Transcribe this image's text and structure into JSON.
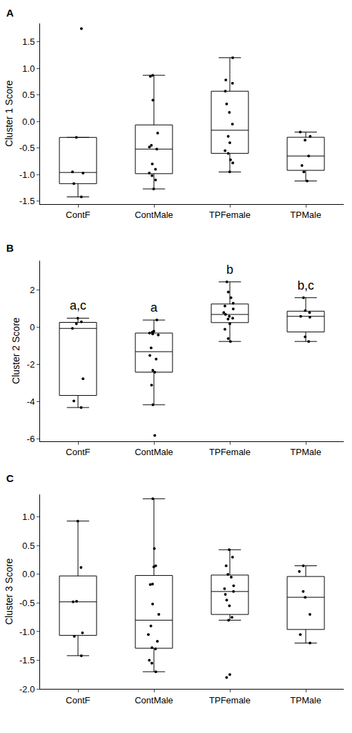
{
  "chart_data": [
    {
      "type": "box",
      "panel": "A",
      "y_label": "Cluster 1 Score",
      "categories": [
        "ContF",
        "ContMale",
        "TPFemale",
        "TPMale"
      ],
      "values": [
        [
          1.75,
          -0.3,
          -0.95,
          -0.97,
          -1.17,
          -1.42
        ],
        [
          0.87,
          0.85,
          0.4,
          -0.22,
          -0.45,
          -0.48,
          -0.52,
          -0.8,
          -0.9,
          -0.97,
          -1.02,
          -1.1,
          -1.27
        ],
        [
          1.2,
          0.78,
          0.72,
          0.57,
          0.33,
          0.17,
          -0.05,
          -0.28,
          -0.4,
          -0.55,
          -0.6,
          -0.72,
          -0.78,
          -0.95
        ],
        [
          -0.2,
          -0.28,
          -0.35,
          -0.65,
          -0.83,
          -0.95,
          -1.12
        ]
      ],
      "ylim": [
        -1.55,
        1.85
      ],
      "yticks": [
        -1.5,
        {
          "value": -1,
          "label": "-1.0"
        },
        -0.5,
        {
          "value": 0,
          "label": "0.0"
        },
        0.5,
        {
          "value": 1,
          "label": "1.0"
        },
        1.5
      ],
      "color": "#000000"
    },
    {
      "type": "box",
      "panel": "B",
      "y_label": "Cluster 2 Score",
      "categories": [
        "ContF",
        "ContMale",
        "TPFemale",
        "TPMale"
      ],
      "values": [
        [
          0.5,
          0.3,
          0.2,
          -0.05,
          -2.75,
          -3.95,
          -4.3
        ],
        [
          0.4,
          -0.2,
          -0.25,
          -0.3,
          -0.35,
          -0.4,
          -1.1,
          -1.5,
          -1.7,
          -2.3,
          -2.4,
          -3.1,
          -4.15,
          -5.8
        ],
        [
          2.45,
          1.9,
          1.6,
          1.3,
          1.15,
          1.0,
          0.8,
          0.7,
          0.6,
          0.5,
          0.45,
          0.2,
          -0.1,
          -0.6,
          -0.75
        ],
        [
          1.6,
          0.9,
          0.8,
          0.6,
          0.55,
          -0.5,
          -0.75
        ]
      ],
      "ylim": [
        -6.1,
        3.6
      ],
      "yticks": [
        -6,
        -4,
        -2,
        0,
        2
      ],
      "annotations": [
        {
          "category": "ContF",
          "text": "a,c"
        },
        {
          "category": "ContMale",
          "text": "a"
        },
        {
          "category": "TPFemale",
          "text": "b"
        },
        {
          "category": "TPMale",
          "text": "b,c"
        }
      ],
      "color": "#000000"
    },
    {
      "type": "box",
      "panel": "C",
      "y_label": "Cluster 3 Score",
      "categories": [
        "ContF",
        "ContMale",
        "TPFemale",
        "TPMale"
      ],
      "values": [
        [
          0.93,
          0.12,
          -0.47,
          -0.48,
          -1.02,
          -1.08,
          -1.42
        ],
        [
          1.32,
          0.45,
          0.15,
          0.13,
          -0.17,
          -0.18,
          -0.52,
          -0.7,
          -0.9,
          -1.05,
          -1.17,
          -1.28,
          -1.3,
          -1.5,
          -1.55,
          -1.7
        ],
        [
          0.43,
          0.3,
          0.15,
          0.0,
          -0.05,
          -0.2,
          -0.25,
          -0.3,
          -0.35,
          -0.45,
          -0.55,
          -0.75,
          -0.8,
          -1.75,
          -1.8
        ],
        [
          0.15,
          0.05,
          -0.3,
          -0.4,
          -0.7,
          -1.05,
          -1.2
        ]
      ],
      "ylim": [
        -2.0,
        1.4
      ],
      "yticks": [
        {
          "value": -2,
          "label": "-2.0"
        },
        -1.5,
        {
          "value": -1,
          "label": "-1.0"
        },
        -0.5,
        {
          "value": 0,
          "label": "0.0"
        },
        0.5,
        {
          "value": 1,
          "label": "1.0"
        }
      ],
      "color": "#000000"
    }
  ]
}
